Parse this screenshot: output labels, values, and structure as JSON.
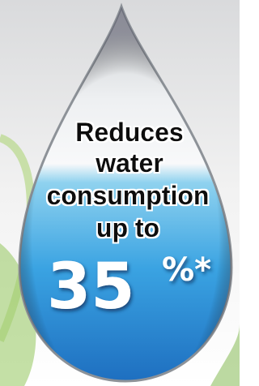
{
  "drop": {
    "lines": [
      "Reduces",
      "water",
      "consumption",
      "up to"
    ],
    "figure": "35",
    "suffix": "%*"
  }
}
